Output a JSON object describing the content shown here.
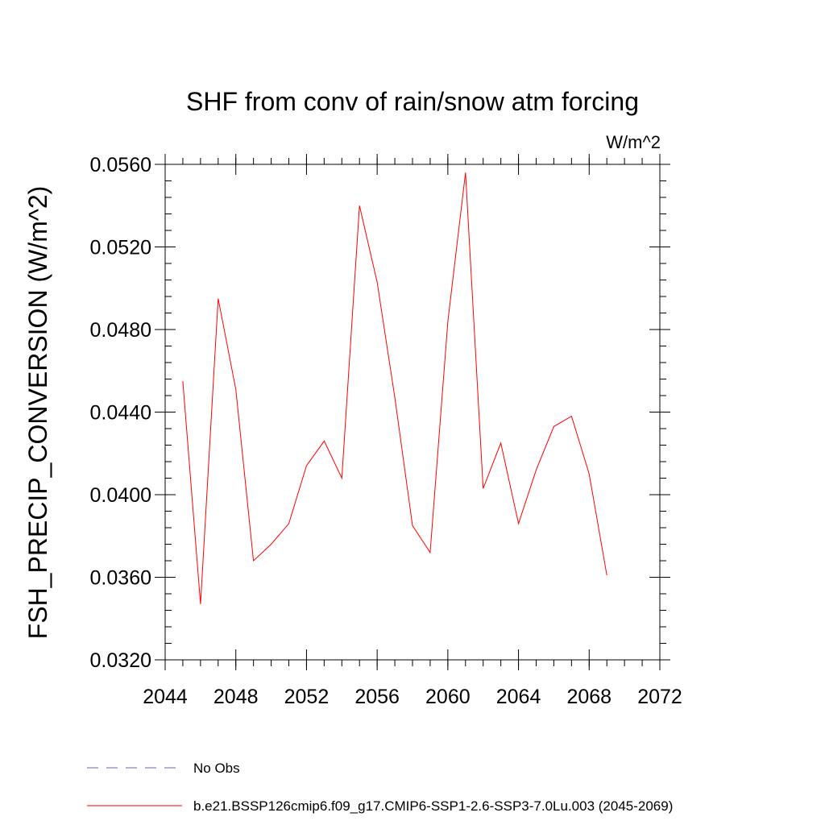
{
  "chart_data": {
    "type": "line",
    "title": "SHF from conv of rain/snow atm forcing",
    "units_label": "W/m^2",
    "ylabel": "FSH_PRECIP_CONVERSION  (W/m^2)",
    "xlabel": "",
    "xlim": [
      2044,
      2072
    ],
    "ylim": [
      0.032,
      0.056
    ],
    "x_ticks": [
      2044,
      2048,
      2052,
      2056,
      2060,
      2064,
      2068,
      2072
    ],
    "x_tick_labels": [
      "2044",
      "2048",
      "2052",
      "2056",
      "2060",
      "2064",
      "2068",
      "2072"
    ],
    "y_ticks": [
      0.032,
      0.036,
      0.04,
      0.044,
      0.048,
      0.052,
      0.056
    ],
    "y_tick_labels": [
      "0.0320",
      "0.0360",
      "0.0400",
      "0.0440",
      "0.0480",
      "0.0520",
      "0.0560"
    ],
    "grid": false,
    "legend_position": "bottom",
    "series": [
      {
        "name": "b.e21.BSSP126cmip6.f09_g17.CMIP6-SSP1-2.6-SSP3-7.0Lu.003 (2045-2069)",
        "color": "#ff0000",
        "style": "solid",
        "x": [
          2045,
          2046,
          2047,
          2048,
          2049,
          2050,
          2051,
          2052,
          2053,
          2054,
          2055,
          2056,
          2057,
          2058,
          2059,
          2060,
          2061,
          2062,
          2063,
          2064,
          2065,
          2066,
          2067,
          2068,
          2069
        ],
        "values": [
          0.0455,
          0.0347,
          0.0495,
          0.0451,
          0.0368,
          0.0376,
          0.0386,
          0.0414,
          0.0426,
          0.0408,
          0.054,
          0.0503,
          0.0447,
          0.0385,
          0.0372,
          0.0484,
          0.0556,
          0.0403,
          0.0425,
          0.0386,
          0.0412,
          0.0433,
          0.0438,
          0.041,
          0.0361
        ]
      }
    ],
    "legend": [
      {
        "label": "No Obs",
        "color": "#6b5fb5",
        "style": "dashed"
      },
      {
        "label": "b.e21.BSSP126cmip6.f09_g17.CMIP6-SSP1-2.6-SSP3-7.0Lu.003 (2045-2069)",
        "color": "#ff0000",
        "style": "solid"
      }
    ]
  }
}
